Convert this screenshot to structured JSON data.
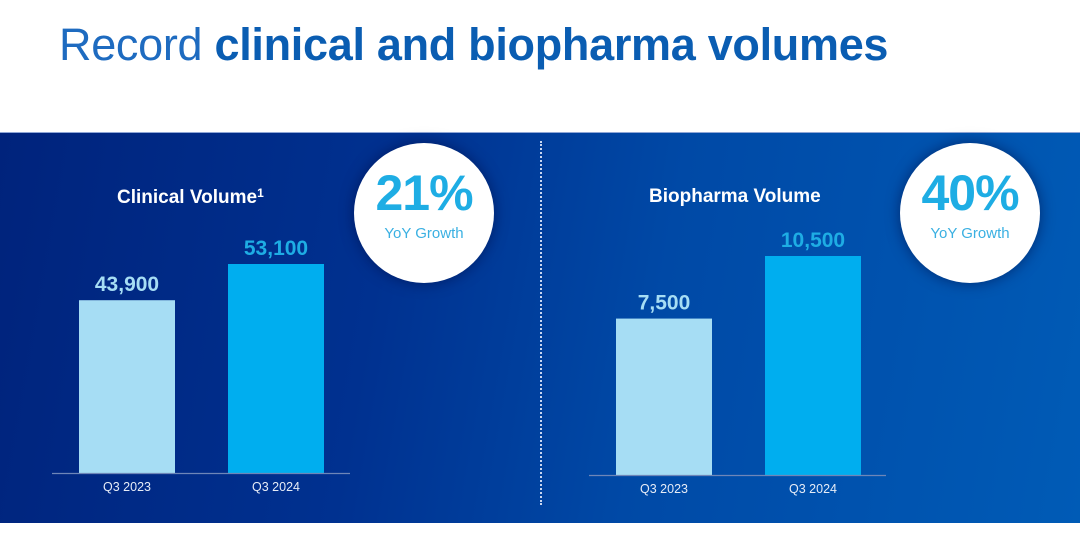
{
  "page": {
    "title_light": "Record",
    "title_bold": "clinical and biopharma volumes"
  },
  "colors": {
    "prior_bar": "#A6DDF4",
    "current_bar": "#00AEEF",
    "prior_label": "#A6DDF4",
    "current_label": "#1EADE4",
    "accent": "#1EADE4"
  },
  "panels": [
    {
      "title": "Clinical Volume",
      "footnote": "1",
      "growth_value": "21%",
      "growth_label": "YoY Growth"
    },
    {
      "title": "Biopharma Volume",
      "footnote": "",
      "growth_value": "40%",
      "growth_label": "YoY Growth"
    }
  ],
  "chart_data": [
    {
      "type": "bar",
      "title": "Clinical Volume¹",
      "categories": [
        "Q3 2023",
        "Q3 2024"
      ],
      "values": [
        43900,
        53100
      ],
      "data_labels": [
        "43,900",
        "53,100"
      ],
      "xlabel": "",
      "ylabel": "",
      "ylim": [
        0,
        53100
      ],
      "grid": false,
      "annotation": "21% YoY Growth"
    },
    {
      "type": "bar",
      "title": "Biopharma Volume",
      "categories": [
        "Q3 2023",
        "Q3 2024"
      ],
      "values": [
        7500,
        10500
      ],
      "data_labels": [
        "7,500",
        "10,500"
      ],
      "xlabel": "",
      "ylabel": "",
      "ylim": [
        0,
        10500
      ],
      "grid": false,
      "annotation": "40% YoY Growth"
    }
  ]
}
